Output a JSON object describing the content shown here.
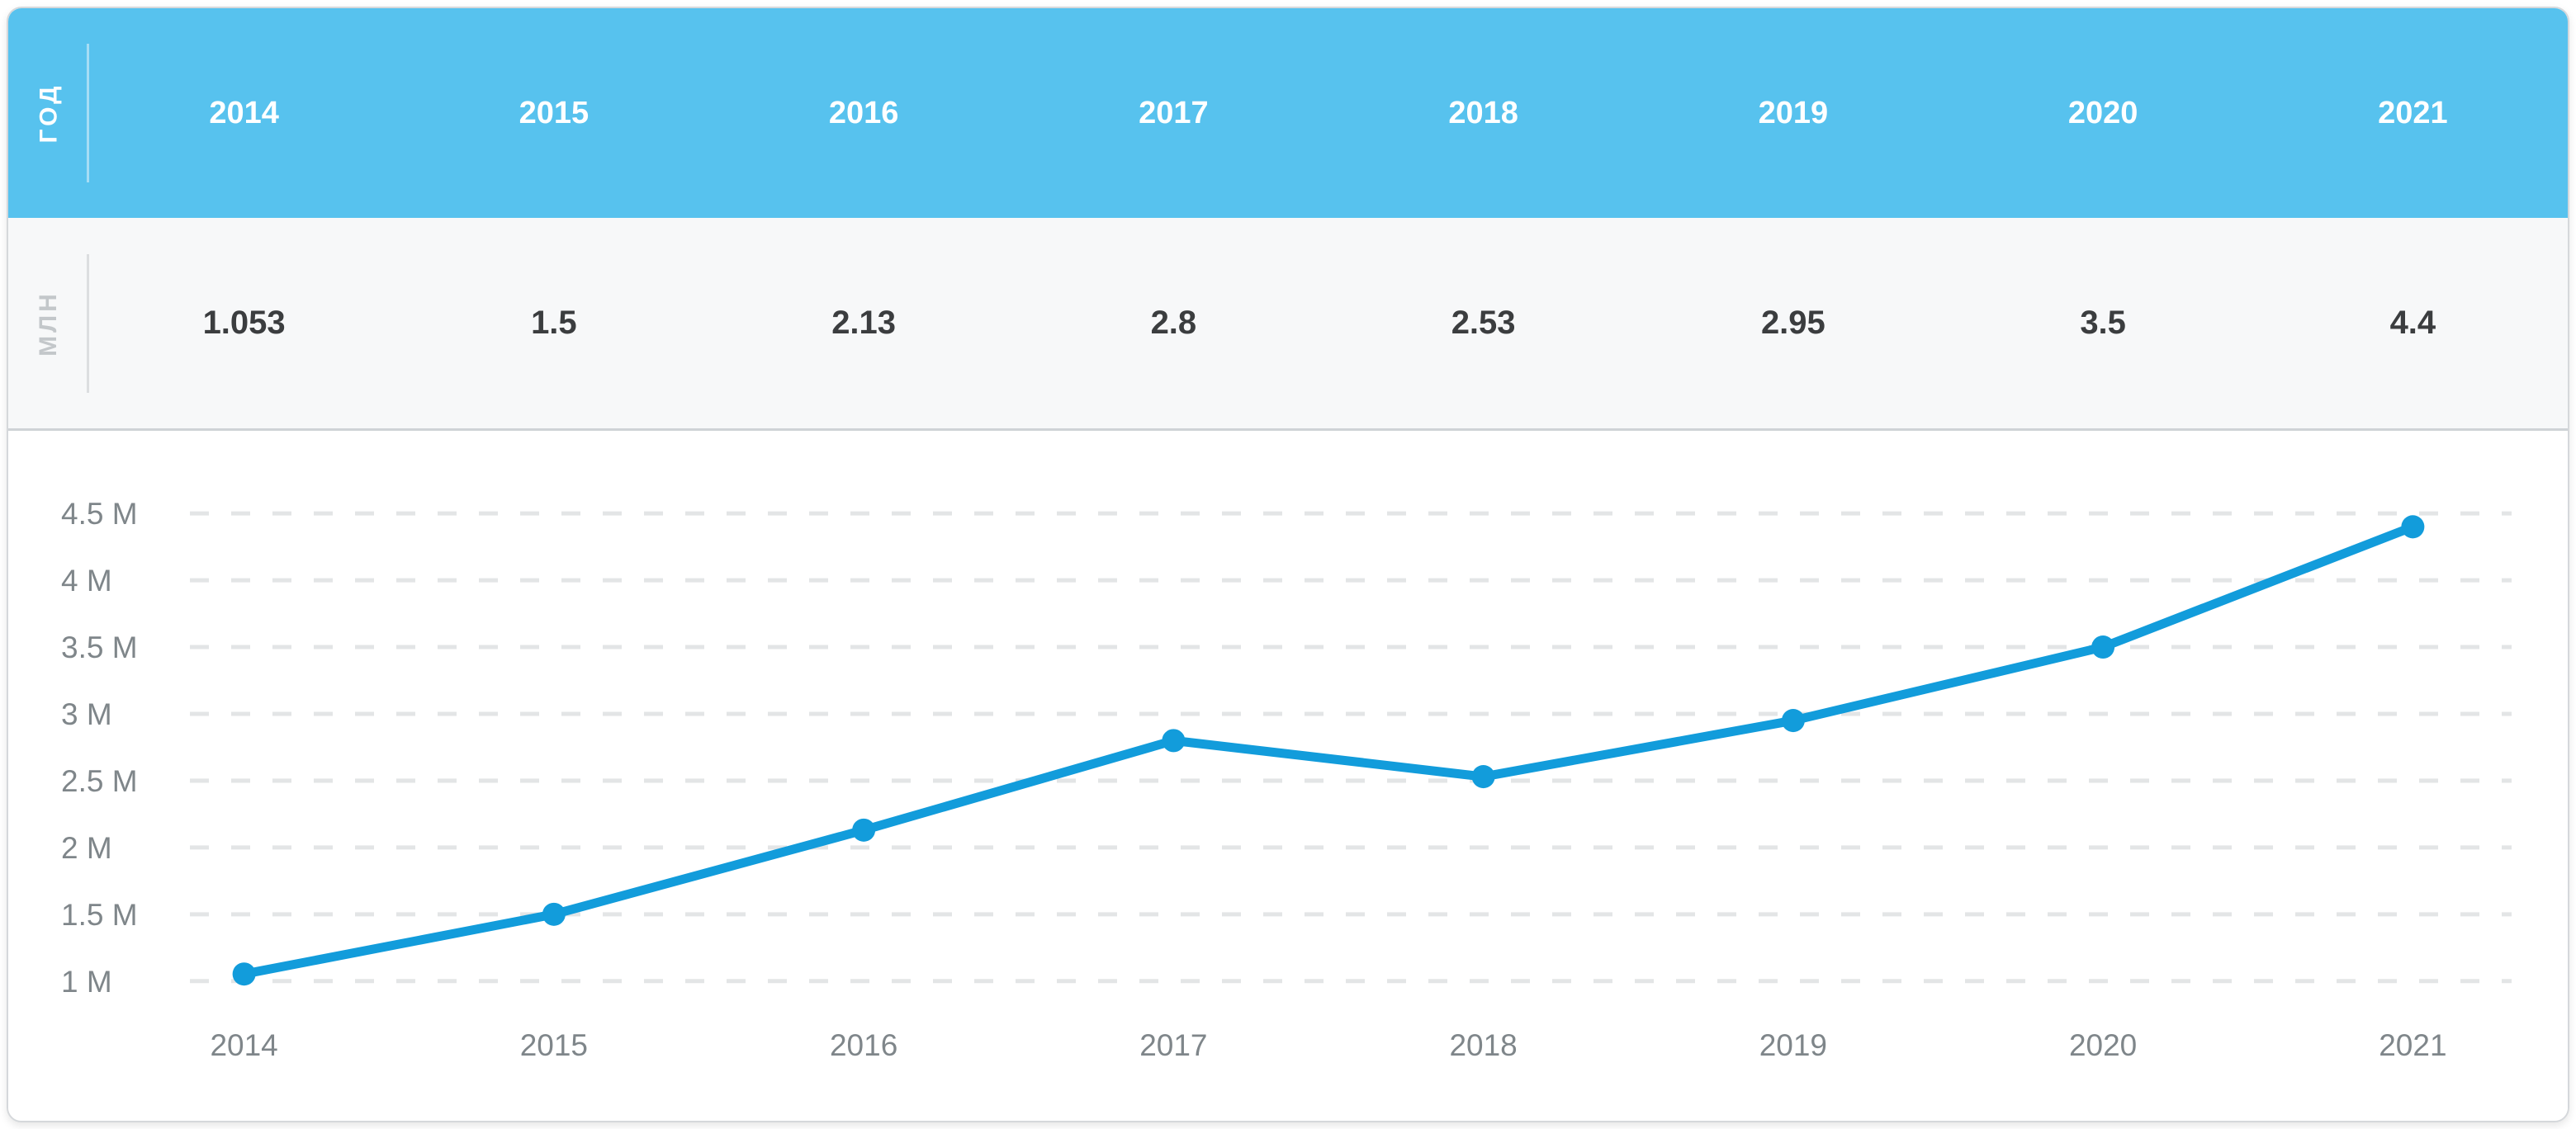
{
  "table": {
    "header_row_label": "ГОД",
    "value_row_label": "МЛН",
    "years": [
      "2014",
      "2015",
      "2016",
      "2017",
      "2018",
      "2019",
      "2020",
      "2021"
    ],
    "values": [
      "1.053",
      "1.5",
      "2.13",
      "2.8",
      "2.53",
      "2.95",
      "3.5",
      "4.4"
    ]
  },
  "chart_data": {
    "type": "line",
    "categories": [
      "2014",
      "2015",
      "2016",
      "2017",
      "2018",
      "2019",
      "2020",
      "2021"
    ],
    "series": [
      {
        "name": "МЛН",
        "values": [
          1.053,
          1.5,
          2.13,
          2.8,
          2.53,
          2.95,
          3.5,
          4.4
        ]
      }
    ],
    "title": "",
    "xlabel": "",
    "ylabel": "",
    "ylim": [
      1,
      4.5
    ],
    "y_ticks": [
      1,
      1.5,
      2,
      2.5,
      3,
      3.5,
      4,
      4.5
    ],
    "y_tick_labels": [
      "1 M",
      "1.5 M",
      "2 M",
      "2.5 M",
      "3 M",
      "3.5 M",
      "4 M",
      "4.5 M"
    ],
    "grid": "dashed-horizontal",
    "legend": "none",
    "marker": "circle"
  },
  "colors": {
    "header_bg": "#57c2ee",
    "header_text": "#ffffff",
    "values_bg": "#f7f8f9",
    "value_text": "#3b3d3f",
    "muted_label": "#c3c7ca",
    "line": "#129cdb",
    "grid": "#e3e5e6",
    "axis_text": "#7f868a",
    "card_border": "#d5d8db"
  }
}
